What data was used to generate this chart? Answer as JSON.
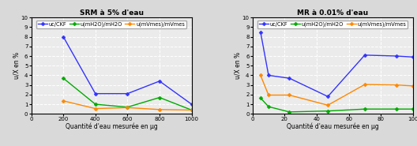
{
  "left": {
    "title": "SRM à 5% d'eau",
    "xlabel": "Quantité d'eau mesurée en µg",
    "ylabel": "u/X en %",
    "ylim": [
      0,
      10
    ],
    "yticks": [
      0,
      1,
      2,
      3,
      4,
      5,
      6,
      7,
      8,
      9,
      10
    ],
    "xlim": [
      0,
      1000
    ],
    "xticks": [
      0,
      200,
      400,
      600,
      800,
      1000
    ],
    "series": [
      {
        "label": "uc/CKF",
        "color": "#3333ff",
        "marker": "D",
        "x": [
          200,
          400,
          600,
          800,
          1000
        ],
        "y": [
          8.0,
          2.1,
          2.1,
          3.4,
          1.0
        ]
      },
      {
        "label": "u(mH2O)/mH2O",
        "color": "#00aa00",
        "marker": "D",
        "x": [
          200,
          400,
          600,
          800,
          1000
        ],
        "y": [
          3.7,
          1.0,
          0.7,
          1.7,
          0.4
        ]
      },
      {
        "label": "u(mVmes)/mVmes",
        "color": "#ff8800",
        "marker": "D",
        "x": [
          200,
          400,
          600,
          800,
          1000
        ],
        "y": [
          1.35,
          0.55,
          0.65,
          0.45,
          0.4
        ]
      }
    ]
  },
  "right": {
    "title": "MR à 0.01% d'eau",
    "xlabel": "Quantité d'eau mesurée en µg",
    "ylabel": "u/X en %",
    "ylim": [
      0,
      10
    ],
    "yticks": [
      0,
      1,
      2,
      3,
      4,
      5,
      6,
      7,
      8,
      9,
      10
    ],
    "xlim": [
      0,
      100
    ],
    "xticks": [
      0,
      20,
      40,
      60,
      80,
      100
    ],
    "series": [
      {
        "label": "uc/CKF",
        "color": "#3333ff",
        "marker": "D",
        "x": [
          5,
          10,
          23,
          47,
          70,
          90,
          100
        ],
        "y": [
          8.5,
          4.0,
          3.7,
          1.8,
          6.1,
          6.0,
          5.9
        ]
      },
      {
        "label": "u(mH2O)/mH2O",
        "color": "#00aa00",
        "marker": "D",
        "x": [
          5,
          10,
          23,
          47,
          70,
          90,
          100
        ],
        "y": [
          1.65,
          0.75,
          0.2,
          0.3,
          0.5,
          0.5,
          0.5
        ]
      },
      {
        "label": "u(mVmes)/mVmes",
        "color": "#ff8800",
        "marker": "D",
        "x": [
          5,
          10,
          23,
          47,
          70,
          90,
          100
        ],
        "y": [
          4.0,
          1.95,
          1.95,
          0.9,
          3.05,
          3.0,
          2.9
        ]
      }
    ]
  },
  "legend_labels": [
    "uc/CKF",
    "u(mH2O)/mH2O",
    "u(mVmes)/mVmes"
  ],
  "legend_colors": [
    "#3333ff",
    "#00aa00",
    "#ff8800"
  ],
  "bg_color": "#d9d9d9",
  "plot_bg_color": "#ebebeb",
  "grid_color": "#ffffff",
  "title_fontsize": 6.5,
  "label_fontsize": 5.5,
  "tick_fontsize": 5.0,
  "legend_fontsize": 4.8,
  "linewidth": 1.0,
  "markersize": 2.5
}
